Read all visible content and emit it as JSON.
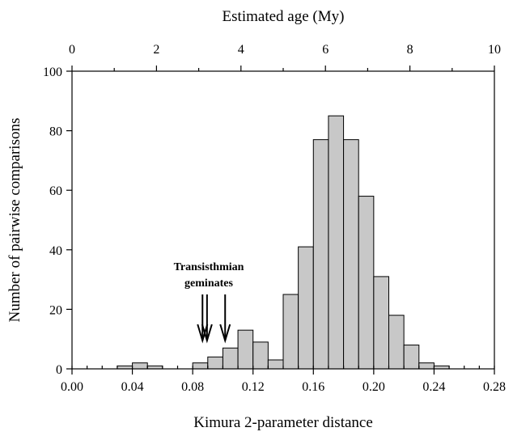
{
  "chart_data": {
    "type": "bar",
    "top_axis": {
      "label": "Estimated age (My)",
      "ticks": [
        0,
        2,
        4,
        6,
        8,
        10
      ],
      "tick_labels": [
        "0",
        "2",
        "4",
        "6",
        "8",
        "10"
      ],
      "range": [
        0,
        10
      ]
    },
    "xlabel": "Kimura 2-parameter distance",
    "ylabel": "Number of pairwise comparisons",
    "xlim": [
      0,
      0.28
    ],
    "ylim": [
      0,
      100
    ],
    "x_ticks": [
      0,
      0.04,
      0.08,
      0.12,
      0.16,
      0.2,
      0.24,
      0.28
    ],
    "x_tick_labels": [
      "0.00",
      "0.04",
      "0.08",
      "0.12",
      "0.16",
      "0.20",
      "0.24",
      "0.28"
    ],
    "y_ticks": [
      0,
      20,
      40,
      60,
      80,
      100
    ],
    "y_tick_labels": [
      "0",
      "20",
      "40",
      "60",
      "80",
      "100"
    ],
    "bin_width": 0.01,
    "bins": [
      {
        "x": 0.03,
        "value": 1
      },
      {
        "x": 0.04,
        "value": 2
      },
      {
        "x": 0.05,
        "value": 1
      },
      {
        "x": 0.08,
        "value": 2
      },
      {
        "x": 0.09,
        "value": 4
      },
      {
        "x": 0.1,
        "value": 7
      },
      {
        "x": 0.11,
        "value": 13
      },
      {
        "x": 0.12,
        "value": 9
      },
      {
        "x": 0.13,
        "value": 3
      },
      {
        "x": 0.14,
        "value": 25
      },
      {
        "x": 0.15,
        "value": 41
      },
      {
        "x": 0.16,
        "value": 77
      },
      {
        "x": 0.17,
        "value": 85
      },
      {
        "x": 0.18,
        "value": 77
      },
      {
        "x": 0.19,
        "value": 58
      },
      {
        "x": 0.2,
        "value": 31
      },
      {
        "x": 0.21,
        "value": 18
      },
      {
        "x": 0.22,
        "value": 8
      },
      {
        "x": 0.23,
        "value": 2
      },
      {
        "x": 0.24,
        "value": 1
      }
    ],
    "annotation": {
      "text_line1": "Transisthmian",
      "text_line2": "geminates",
      "arrow_x": [
        0.0865,
        0.0895,
        0.1015
      ]
    },
    "grid": false
  }
}
